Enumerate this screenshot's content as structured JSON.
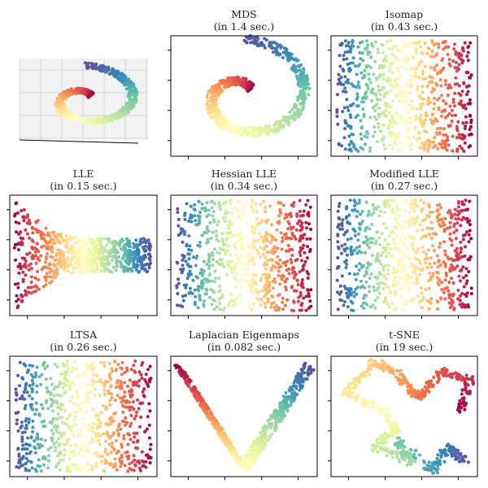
{
  "chart_data": [
    {
      "type": "scatter",
      "title": "",
      "subtitle": "",
      "mapping": "scurve3d",
      "n_points": 700,
      "colormap": "Spectral",
      "colored_by": "position along manifold"
    },
    {
      "type": "scatter",
      "title": "MDS",
      "subtitle": "(in 1.4 sec.)",
      "mapping": "spiral",
      "n_points": 700,
      "colormap": "Spectral"
    },
    {
      "type": "scatter",
      "title": "Isomap",
      "subtitle": "(in 0.43 sec.)",
      "mapping": "rect_reversed",
      "n_points": 700,
      "colormap": "Spectral"
    },
    {
      "type": "scatter",
      "title": "LLE",
      "subtitle": "(in 0.15 sec.)",
      "mapping": "bowtie",
      "n_points": 700,
      "colormap": "Spectral"
    },
    {
      "type": "scatter",
      "title": "Hessian LLE",
      "subtitle": "(in 0.34 sec.)",
      "mapping": "rect_reversed",
      "n_points": 700,
      "colormap": "Spectral"
    },
    {
      "type": "scatter",
      "title": "Modified LLE",
      "subtitle": "(in 0.27 sec.)",
      "mapping": "rect_reversed",
      "n_points": 700,
      "colormap": "Spectral"
    },
    {
      "type": "scatter",
      "title": "LTSA",
      "subtitle": "(in 0.26 sec.)",
      "mapping": "rect_reversed",
      "n_points": 700,
      "colormap": "Spectral"
    },
    {
      "type": "scatter",
      "title": "Laplacian Eigenmaps",
      "subtitle": "(in 0.082 sec.)",
      "mapping": "vshape",
      "n_points": 700,
      "colormap": "Spectral"
    },
    {
      "type": "scatter",
      "title": "t-SNE",
      "subtitle": "(in 19 sec.)",
      "mapping": "tsne",
      "n_points": 700,
      "colormap": "Spectral"
    }
  ],
  "colors": {
    "spectral": [
      "#9e0142",
      "#d53e4f",
      "#f46d43",
      "#fdae61",
      "#fee08b",
      "#ffffbf",
      "#e6f598",
      "#abdda4",
      "#66c2a5",
      "#3288bd",
      "#5e4fa2"
    ],
    "axis": "#000000",
    "pane": "#f2f2f2"
  }
}
